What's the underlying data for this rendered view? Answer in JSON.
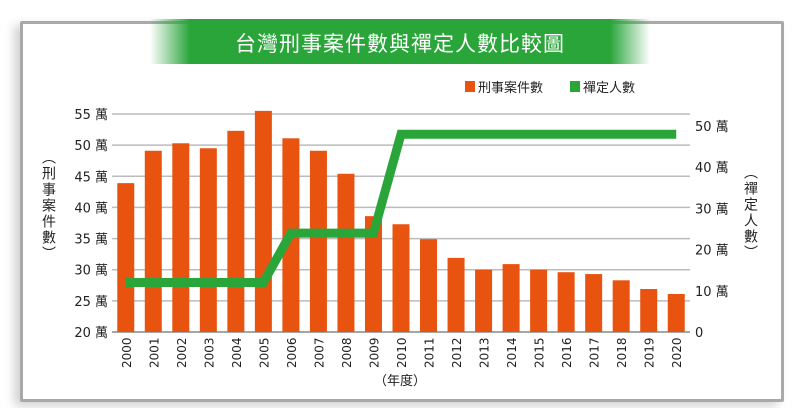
{
  "chart_data": {
    "type": "bar+line",
    "title": "台灣刑事案件數與禪定人數比較圖",
    "xlabel": "（年度）",
    "ylabel_left": "（刑事案件數）",
    "ylabel_right": "（禪定人數）",
    "categories": [
      "2000",
      "2001",
      "2002",
      "2003",
      "2004",
      "2005",
      "2006",
      "2007",
      "2008",
      "2009",
      "2010",
      "2011",
      "2012",
      "2013",
      "2014",
      "2015",
      "2016",
      "2017",
      "2018",
      "2019",
      "2020"
    ],
    "series": [
      {
        "name": "刑事案件數",
        "type": "bar",
        "axis": "left",
        "color": "#e8530f",
        "values": [
          43.9,
          49.1,
          50.3,
          49.5,
          52.3,
          55.5,
          51.1,
          49.1,
          45.4,
          38.6,
          37.3,
          34.9,
          31.9,
          30.0,
          30.9,
          30.0,
          29.6,
          29.3,
          28.3,
          26.9,
          26.1
        ]
      },
      {
        "name": "禪定人數",
        "type": "line",
        "axis": "right",
        "color": "#2aa53a",
        "values": [
          12,
          12,
          12,
          12,
          12,
          12,
          24,
          24,
          24,
          24,
          48,
          48,
          48,
          48,
          48,
          48,
          48,
          48,
          48,
          48,
          48
        ]
      }
    ],
    "left_axis": {
      "ylim": [
        20,
        55
      ],
      "ticks": [
        20,
        25,
        30,
        35,
        40,
        45,
        50,
        55
      ],
      "tick_labels": [
        "20 萬",
        "25 萬",
        "30 萬",
        "35 萬",
        "40 萬",
        "45 萬",
        "50 萬",
        "55 萬"
      ]
    },
    "right_axis": {
      "ylim": [
        0,
        50
      ],
      "ticks": [
        0,
        10,
        20,
        30,
        40,
        50
      ],
      "tick_labels": [
        "0",
        "10 萬",
        "20 萬",
        "30 萬",
        "40 萬",
        "50 萬"
      ]
    },
    "grid": true,
    "legend": "top-right"
  }
}
